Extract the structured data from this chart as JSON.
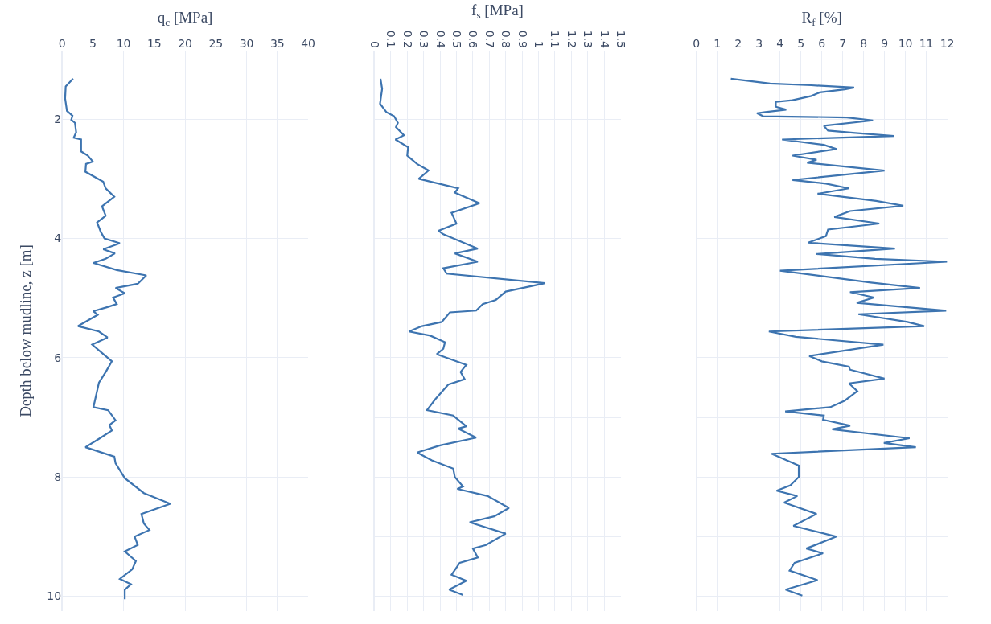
{
  "chart_data": [
    {
      "type": "line",
      "xlabel": "q$_{c}$ [MPa]",
      "ylabel": "Depth below mudline, z [m]",
      "xlim": [
        0,
        40
      ],
      "xticks": [
        0,
        5,
        10,
        15,
        20,
        25,
        30,
        35,
        40
      ],
      "ylim": [
        10.25,
        0.85
      ],
      "yticks": [
        2,
        4,
        6,
        8,
        10
      ],
      "grid": true,
      "series": [
        {
          "color": "#3d74b0",
          "x": [
            1.8,
            0.6,
            0.5,
            0.8,
            1.7,
            1.5,
            2.1,
            2.3,
            1.9,
            3.1,
            3.1,
            4.2,
            5.0,
            3.9,
            3.8,
            6.7,
            7.1,
            8.5,
            6.5,
            7.1,
            5.7,
            6.3,
            6.9,
            9.4,
            6.7,
            8.6,
            7.1,
            5.1,
            8.9,
            13.7,
            12.3,
            8.7,
            10.2,
            8.3,
            8.9,
            7.4,
            5.1,
            5.8,
            2.6,
            6.0,
            7.4,
            4.9,
            8.1,
            7.1,
            6.0,
            5.1,
            7.5,
            8.7,
            7.7,
            8.1,
            6.0,
            3.8,
            8.5,
            8.7,
            10.2,
            13.3,
            17.6,
            12.9,
            13.3,
            14.2,
            11.8,
            12.3,
            10.2,
            12.0,
            11.4,
            9.4,
            11.2,
            10.2,
            10.2
          ],
          "values": [
            1.32,
            1.45,
            1.65,
            1.86,
            1.94,
            2.01,
            2.06,
            2.22,
            2.31,
            2.34,
            2.54,
            2.61,
            2.71,
            2.75,
            2.88,
            3.05,
            3.16,
            3.3,
            3.46,
            3.62,
            3.73,
            3.89,
            4.0,
            4.08,
            4.18,
            4.25,
            4.34,
            4.41,
            4.53,
            4.62,
            4.76,
            4.83,
            4.92,
            4.99,
            5.1,
            5.15,
            5.22,
            5.28,
            5.47,
            5.56,
            5.66,
            5.78,
            6.06,
            6.24,
            6.42,
            6.83,
            6.88,
            7.05,
            7.13,
            7.22,
            7.36,
            7.5,
            7.66,
            7.77,
            8.02,
            8.27,
            8.45,
            8.62,
            8.78,
            8.89,
            9.0,
            9.14,
            9.25,
            9.41,
            9.55,
            9.71,
            9.8,
            9.89,
            10.05
          ]
        }
      ]
    },
    {
      "type": "line",
      "xlabel": "f$_{s}$ [MPa]",
      "xlim": [
        0,
        1.5
      ],
      "xticks": [
        0,
        0.1,
        0.2,
        0.3,
        0.4,
        0.5,
        0.6,
        0.7,
        0.8,
        0.9,
        1,
        1.1,
        1.2,
        1.3,
        1.4,
        1.5
      ],
      "ylim": [
        10.25,
        0.85
      ],
      "yticks": [
        1,
        2,
        3,
        4,
        5,
        6,
        7,
        8,
        9,
        10
      ],
      "tick_labels": "x",
      "grid": true,
      "series": [
        {
          "color": "#3d74b0",
          "x": [
            0.037,
            0.047,
            0.034,
            0.073,
            0.12,
            0.143,
            0.131,
            0.18,
            0.128,
            0.205,
            0.2,
            0.26,
            0.33,
            0.27,
            0.51,
            0.49,
            0.64,
            0.47,
            0.5,
            0.39,
            0.42,
            0.63,
            0.49,
            0.63,
            0.42,
            0.44,
            1.04,
            0.8,
            0.74,
            0.66,
            0.62,
            0.46,
            0.41,
            0.29,
            0.21,
            0.34,
            0.43,
            0.42,
            0.38,
            0.56,
            0.525,
            0.55,
            0.45,
            0.37,
            0.32,
            0.48,
            0.56,
            0.51,
            0.62,
            0.4,
            0.26,
            0.35,
            0.48,
            0.49,
            0.54,
            0.505,
            0.69,
            0.82,
            0.73,
            0.58,
            0.8,
            0.68,
            0.6,
            0.63,
            0.52,
            0.47,
            0.56,
            0.455,
            0.54
          ],
          "values": [
            1.32,
            1.49,
            1.74,
            1.88,
            1.95,
            2.06,
            2.13,
            2.27,
            2.34,
            2.47,
            2.61,
            2.75,
            2.86,
            3.0,
            3.16,
            3.23,
            3.41,
            3.57,
            3.75,
            3.87,
            3.93,
            4.17,
            4.25,
            4.39,
            4.5,
            4.59,
            4.75,
            4.89,
            5.03,
            5.1,
            5.21,
            5.24,
            5.4,
            5.47,
            5.56,
            5.63,
            5.74,
            5.85,
            5.94,
            6.12,
            6.24,
            6.36,
            6.45,
            6.7,
            6.88,
            6.97,
            7.15,
            7.19,
            7.34,
            7.47,
            7.59,
            7.72,
            7.86,
            8.0,
            8.16,
            8.2,
            8.32,
            8.52,
            8.66,
            8.76,
            8.95,
            9.14,
            9.2,
            9.35,
            9.44,
            9.64,
            9.74,
            9.89,
            9.98
          ]
        }
      ]
    },
    {
      "type": "line",
      "xlabel": "R$_{f}$ [%]",
      "xlim": [
        0,
        12
      ],
      "xticks": [
        0,
        1,
        2,
        3,
        4,
        5,
        6,
        7,
        8,
        9,
        10,
        11,
        12
      ],
      "ylim": [
        10.25,
        0.85
      ],
      "yticks": [
        1,
        2,
        3,
        4,
        5,
        6,
        7,
        8,
        9,
        10
      ],
      "tick_labels": "x",
      "grid": true,
      "series": [
        {
          "color": "#3d74b0",
          "x": [
            1.65,
            3.53,
            5.5,
            7.55,
            7.1,
            5.9,
            5.5,
            4.6,
            3.8,
            3.8,
            4.3,
            3.3,
            2.9,
            3.2,
            7.2,
            8.45,
            6.1,
            6.3,
            7.6,
            9.45,
            4.1,
            6.1,
            6.7,
            4.6,
            5.75,
            5.3,
            9.0,
            4.6,
            6.2,
            7.3,
            5.8,
            8.6,
            9.9,
            7.35,
            6.6,
            8.75,
            6.3,
            6.2,
            5.35,
            9.5,
            5.75,
            8.55,
            12.0,
            4.0,
            8.35,
            10.7,
            7.35,
            8.5,
            7.67,
            11.95,
            7.75,
            10.1,
            10.9,
            3.47,
            4.76,
            8.95,
            5.4,
            6.0,
            7.3,
            7.35,
            9.0,
            7.3,
            7.7,
            7.1,
            6.4,
            4.25,
            6.1,
            6.06,
            7.36,
            6.5,
            10.2,
            8.97,
            10.5,
            3.6,
            4.9,
            4.9,
            4.5,
            3.84,
            4.83,
            4.2,
            5.75,
            4.64,
            6.7,
            5.26,
            6.06,
            4.7,
            4.46,
            5.8,
            4.27,
            5.07
          ],
          "values": [
            1.32,
            1.4,
            1.43,
            1.47,
            1.5,
            1.55,
            1.61,
            1.68,
            1.71,
            1.79,
            1.84,
            1.88,
            1.9,
            1.95,
            1.97,
            2.02,
            2.11,
            2.19,
            2.23,
            2.28,
            2.34,
            2.43,
            2.5,
            2.61,
            2.68,
            2.73,
            2.86,
            3.02,
            3.08,
            3.16,
            3.25,
            3.37,
            3.45,
            3.54,
            3.64,
            3.75,
            3.85,
            3.96,
            4.07,
            4.17,
            4.26,
            4.34,
            4.39,
            4.54,
            4.74,
            4.83,
            4.9,
            4.99,
            5.08,
            5.21,
            5.27,
            5.4,
            5.47,
            5.56,
            5.65,
            5.78,
            5.97,
            6.06,
            6.15,
            6.2,
            6.35,
            6.43,
            6.56,
            6.72,
            6.83,
            6.9,
            6.97,
            7.04,
            7.14,
            7.2,
            7.35,
            7.43,
            7.5,
            7.61,
            7.81,
            8.0,
            8.14,
            8.23,
            8.32,
            8.43,
            8.62,
            8.82,
            9.0,
            9.2,
            9.28,
            9.44,
            9.57,
            9.73,
            9.89,
            9.99
          ]
        }
      ]
    }
  ]
}
